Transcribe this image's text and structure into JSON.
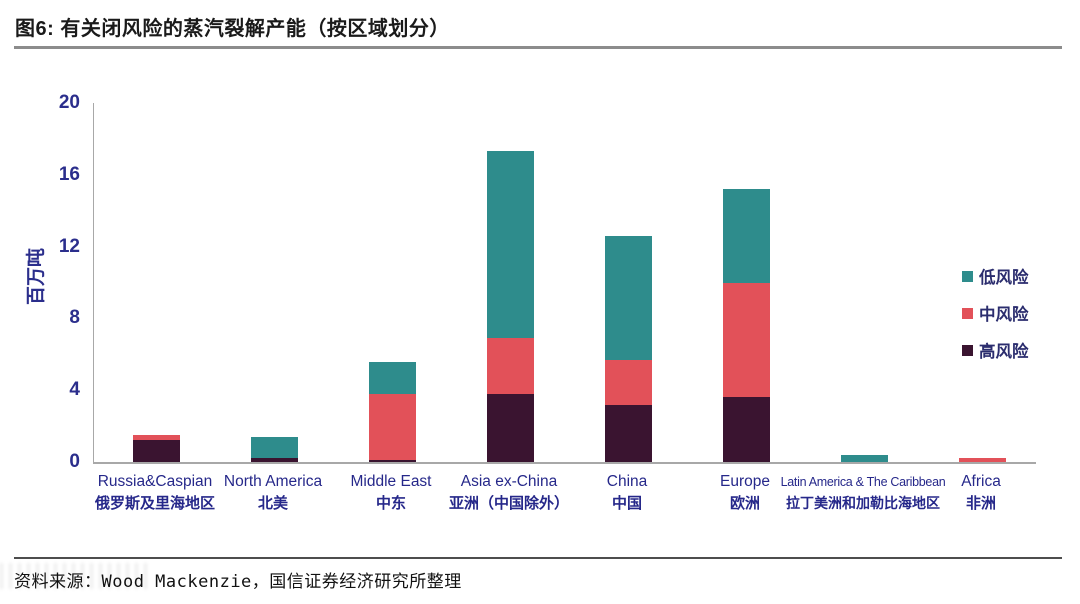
{
  "title": "图6: 有关闭风险的蒸汽裂解产能（按区域划分）",
  "footer": {
    "source_text": "资料来源：Wood Mackenzie，国信证券经济研究所整理"
  },
  "colors": {
    "low_risk": "#2e8c8c",
    "mid_risk": "#e25159",
    "high_risk": "#3a1430",
    "axis_text": "#2b2e8c",
    "axis_line": "#a8a8a8"
  },
  "chart_data": {
    "type": "bar",
    "stacked": true,
    "title": "图6: 有关闭风险的蒸汽裂解产能（按区域划分）",
    "ylabel": "百万吨",
    "xlabel": "",
    "ylim": [
      0,
      20
    ],
    "yticks": [
      0,
      4,
      8,
      12,
      16,
      20
    ],
    "grid": false,
    "legend_position": "right",
    "categories": [
      {
        "en": "Russia&Caspian",
        "zh": "俄罗斯及里海地区"
      },
      {
        "en": "North America",
        "zh": "北美"
      },
      {
        "en": "Middle East",
        "zh": "中东"
      },
      {
        "en": "Asia ex-China",
        "zh": "亚洲（中国除外）"
      },
      {
        "en": "China",
        "zh": "中国"
      },
      {
        "en": "Europe",
        "zh": "欧洲"
      },
      {
        "en": "Latin America & The Caribbean",
        "zh": "拉丁美洲和加勒比海地区"
      },
      {
        "en": "Africa",
        "zh": "非洲"
      }
    ],
    "series": [
      {
        "name": "高风险",
        "color": "#3a1430",
        "values": [
          1.2,
          0.2,
          0.1,
          3.8,
          3.2,
          3.6,
          0,
          0
        ]
      },
      {
        "name": "中风险",
        "color": "#e25159",
        "values": [
          0.3,
          0,
          3.7,
          3.1,
          2.5,
          6.4,
          0,
          0.2
        ]
      },
      {
        "name": "低风险",
        "color": "#2e8c8c",
        "values": [
          0,
          1.2,
          1.8,
          10.4,
          6.9,
          5.2,
          0.4,
          0
        ]
      }
    ],
    "legend": [
      {
        "label": "低风险",
        "color": "#2e8c8c"
      },
      {
        "label": "中风险",
        "color": "#e25159"
      },
      {
        "label": "高风险",
        "color": "#3a1430"
      }
    ]
  }
}
